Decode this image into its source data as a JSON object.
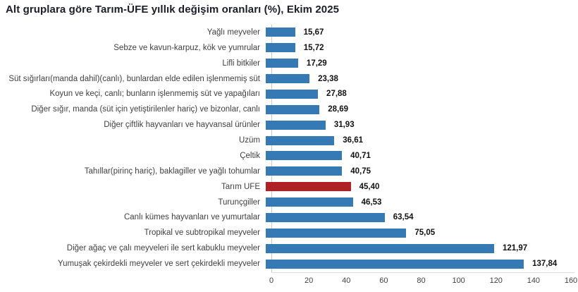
{
  "title": "Alt gruplara göre Tarım-ÜFE yıllık değişim oranları (%), Ekim 2025",
  "chart_data": {
    "type": "bar",
    "orientation": "horizontal",
    "title": "Alt gruplara göre Tarım-ÜFE yıllık değişim oranları (%), Ekim 2025",
    "xlabel": "",
    "ylabel": "",
    "xlim": [
      0,
      160
    ],
    "x_ticks": [
      "0",
      "20",
      "40",
      "60",
      "80",
      "100",
      "120",
      "140",
      "160"
    ],
    "grid": false,
    "legend": "none",
    "categories": [
      "Yağlı meyveler",
      "Sebze ve kavun-karpuz, kök ve yumrular",
      "Lifli bitkiler",
      "Süt sığırları(manda dahil)(canlı), bunlardan elde edilen işlenmemiş süt",
      "Koyun ve keçi, canlı; bunların işlenmemiş süt ve yapağıları",
      "Diğer sığır, manda (süt için yetiştirilenler hariç) ve bizonlar, canlı",
      "Diğer çiftlik hayvanları ve hayvansal ürünler",
      "Üzüm",
      "Çeltik",
      "Tahıllar(pirinç hariç), baklagiller ve yağlı tohumlar",
      "Tarım ÜFE",
      "Turunçgiller",
      "Canlı kümes hayvanları ve yumurtalar",
      "Tropikal ve subtropikal meyveler",
      "Diğer ağaç ve çalı meyveleri ile sert kabuklu meyveler",
      "Yumuşak çekirdekli meyveler ve sert çekirdekli meyveler"
    ],
    "values": [
      15.67,
      15.72,
      17.29,
      23.38,
      27.88,
      28.69,
      31.93,
      36.61,
      40.71,
      40.75,
      45.4,
      46.53,
      63.54,
      75.05,
      121.97,
      137.84
    ],
    "value_labels": [
      "15,67",
      "15,72",
      "17,29",
      "23,38",
      "27,88",
      "28,69",
      "31,93",
      "36,61",
      "40,71",
      "40,75",
      "45,40",
      "46,53",
      "63,54",
      "75,05",
      "121,97",
      "137,84"
    ],
    "highlight_index": 10,
    "colors": {
      "bar": "#3579b5",
      "highlight_bar": "#b01f24",
      "title_text": "#1c1c2b",
      "category_text": "#3f3f3f",
      "value_text": "#111111",
      "axis_line": "#c9c9c9"
    }
  }
}
